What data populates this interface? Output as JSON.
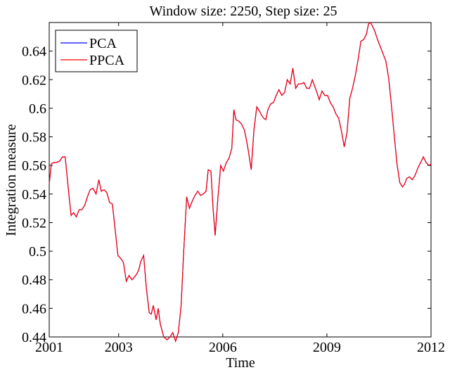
{
  "chart_data": {
    "type": "line",
    "title": "Window size: 2250, Step size: 25",
    "xlabel": "Time",
    "ylabel": "Integration measure",
    "xlim": [
      2001,
      2012
    ],
    "ylim": [
      0.44,
      0.66
    ],
    "xticks": [
      2001,
      2003,
      2006,
      2009,
      2012
    ],
    "xtick_labels": [
      "2001",
      "2003",
      "2006",
      "2009",
      "2012"
    ],
    "yticks": [
      0.44,
      0.46,
      0.48,
      0.5,
      0.52,
      0.54,
      0.56,
      0.58,
      0.6,
      0.62,
      0.64
    ],
    "ytick_labels": [
      "0.44",
      "0.46",
      "0.48",
      "0.5",
      "0.52",
      "0.54",
      "0.56",
      "0.58",
      "0.6",
      "0.62",
      "0.64"
    ],
    "grid": false,
    "legend_position": "top-left",
    "x": [
      2001.0,
      2001.06,
      2001.12,
      2001.2,
      2001.3,
      2001.38,
      2001.46,
      2001.55,
      2001.63,
      2001.7,
      2001.78,
      2001.86,
      2001.94,
      2002.02,
      2002.1,
      2002.18,
      2002.26,
      2002.35,
      2002.43,
      2002.5,
      2002.58,
      2002.66,
      2002.74,
      2002.82,
      2002.9,
      2002.98,
      2003.06,
      2003.14,
      2003.22,
      2003.3,
      2003.38,
      2003.46,
      2003.52,
      2003.58,
      2003.64,
      2003.72,
      2003.8,
      2003.88,
      2003.94,
      2004.0,
      2004.08,
      2004.14,
      2004.2,
      2004.3,
      2004.4,
      2004.48,
      2004.56,
      2004.64,
      2004.72,
      2004.8,
      2004.88,
      2004.96,
      2005.04,
      2005.12,
      2005.2,
      2005.28,
      2005.36,
      2005.44,
      2005.52,
      2005.58,
      2005.66,
      2005.72,
      2005.78,
      2005.86,
      2005.94,
      2006.02,
      2006.1,
      2006.18,
      2006.26,
      2006.32,
      2006.38,
      2006.46,
      2006.54,
      2006.62,
      2006.68,
      2006.74,
      2006.82,
      2006.9,
      2006.98,
      2007.06,
      2007.12,
      2007.18,
      2007.24,
      2007.3,
      2007.38,
      2007.46,
      2007.54,
      2007.62,
      2007.7,
      2007.78,
      2007.86,
      2007.94,
      2008.02,
      2008.1,
      2008.18,
      2008.26,
      2008.34,
      2008.42,
      2008.5,
      2008.58,
      2008.64,
      2008.7,
      2008.78,
      2008.86,
      2008.94,
      2009.02,
      2009.1,
      2009.18,
      2009.26,
      2009.34,
      2009.42,
      2009.5,
      2009.58,
      2009.66,
      2009.74,
      2009.82,
      2009.9,
      2009.98,
      2010.06,
      2010.14,
      2010.2,
      2010.26,
      2010.32,
      2010.38,
      2010.46,
      2010.54,
      2010.62,
      2010.7,
      2010.78,
      2010.86,
      2010.94,
      2011.02,
      2011.1,
      2011.18,
      2011.24,
      2011.3,
      2011.38,
      2011.46,
      2011.54,
      2011.62,
      2011.7,
      2011.78,
      2011.86,
      2011.94,
      2012.0
    ],
    "series": [
      {
        "name": "PCA",
        "color": "#0000ff",
        "values": [
          0.547,
          0.561,
          0.562,
          0.562,
          0.563,
          0.566,
          0.566,
          0.544,
          0.525,
          0.527,
          0.524,
          0.529,
          0.529,
          0.532,
          0.538,
          0.543,
          0.544,
          0.54,
          0.55,
          0.542,
          0.543,
          0.541,
          0.534,
          0.533,
          0.515,
          0.497,
          0.495,
          0.492,
          0.479,
          0.483,
          0.48,
          0.482,
          0.484,
          0.487,
          0.493,
          0.497,
          0.474,
          0.457,
          0.456,
          0.462,
          0.452,
          0.46,
          0.449,
          0.44,
          0.438,
          0.44,
          0.443,
          0.437,
          0.443,
          0.462,
          0.502,
          0.538,
          0.53,
          0.535,
          0.539,
          0.542,
          0.539,
          0.54,
          0.542,
          0.557,
          0.556,
          0.53,
          0.511,
          0.537,
          0.56,
          0.556,
          0.562,
          0.565,
          0.572,
          0.599,
          0.592,
          0.591,
          0.589,
          0.585,
          0.578,
          0.57,
          0.557,
          0.585,
          0.601,
          0.598,
          0.595,
          0.593,
          0.592,
          0.599,
          0.603,
          0.604,
          0.609,
          0.613,
          0.609,
          0.611,
          0.62,
          0.617,
          0.628,
          0.614,
          0.617,
          0.617,
          0.618,
          0.614,
          0.614,
          0.62,
          0.616,
          0.612,
          0.606,
          0.612,
          0.609,
          0.609,
          0.604,
          0.601,
          0.596,
          0.593,
          0.584,
          0.573,
          0.583,
          0.607,
          0.614,
          0.623,
          0.634,
          0.647,
          0.648,
          0.652,
          0.659,
          0.66,
          0.657,
          0.654,
          0.648,
          0.643,
          0.638,
          0.633,
          0.621,
          0.602,
          0.581,
          0.561,
          0.548,
          0.545,
          0.547,
          0.551,
          0.552,
          0.55,
          0.553,
          0.558,
          0.562,
          0.566,
          0.562,
          0.56,
          0.561
        ],
        "note_values_same_as": "PPCA"
      },
      {
        "name": "PPCA",
        "color": "#ff0000",
        "values": [
          0.547,
          0.561,
          0.562,
          0.562,
          0.563,
          0.566,
          0.566,
          0.544,
          0.525,
          0.527,
          0.524,
          0.529,
          0.529,
          0.532,
          0.538,
          0.543,
          0.544,
          0.54,
          0.55,
          0.542,
          0.543,
          0.541,
          0.534,
          0.533,
          0.515,
          0.497,
          0.495,
          0.492,
          0.479,
          0.483,
          0.48,
          0.482,
          0.484,
          0.487,
          0.493,
          0.497,
          0.474,
          0.457,
          0.456,
          0.462,
          0.452,
          0.46,
          0.449,
          0.44,
          0.438,
          0.44,
          0.443,
          0.437,
          0.443,
          0.462,
          0.502,
          0.538,
          0.53,
          0.535,
          0.539,
          0.542,
          0.539,
          0.54,
          0.542,
          0.557,
          0.556,
          0.53,
          0.511,
          0.537,
          0.56,
          0.556,
          0.562,
          0.565,
          0.572,
          0.599,
          0.592,
          0.591,
          0.589,
          0.585,
          0.578,
          0.57,
          0.557,
          0.585,
          0.601,
          0.598,
          0.595,
          0.593,
          0.592,
          0.599,
          0.603,
          0.604,
          0.609,
          0.613,
          0.609,
          0.611,
          0.62,
          0.617,
          0.628,
          0.614,
          0.617,
          0.617,
          0.618,
          0.614,
          0.614,
          0.62,
          0.616,
          0.612,
          0.606,
          0.612,
          0.609,
          0.609,
          0.604,
          0.601,
          0.596,
          0.593,
          0.584,
          0.573,
          0.583,
          0.607,
          0.614,
          0.623,
          0.634,
          0.647,
          0.648,
          0.652,
          0.659,
          0.66,
          0.657,
          0.654,
          0.648,
          0.643,
          0.638,
          0.633,
          0.621,
          0.602,
          0.581,
          0.561,
          0.548,
          0.545,
          0.547,
          0.551,
          0.552,
          0.55,
          0.553,
          0.558,
          0.562,
          0.566,
          0.562,
          0.56,
          0.561
        ]
      }
    ]
  }
}
